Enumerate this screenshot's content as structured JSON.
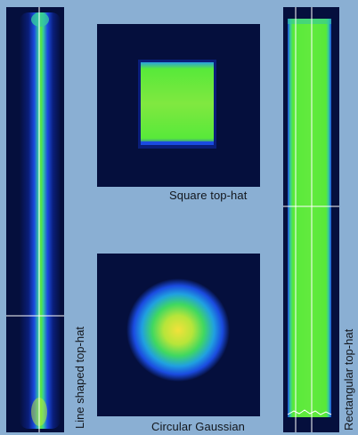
{
  "figure": {
    "captions": {
      "square": "Square top-hat",
      "circular": "Circular Gaussian",
      "line": "Line shaped top-hat",
      "rectangular": "Rectangular top-hat"
    }
  },
  "colors": {
    "background": "#8aafd3",
    "panel_bg": "#050f3d",
    "beam_core": "#58e93a",
    "beam_edge": "#1a4be0",
    "gaussian_center": "#f2e13a",
    "crosshair": "#ffffff"
  }
}
